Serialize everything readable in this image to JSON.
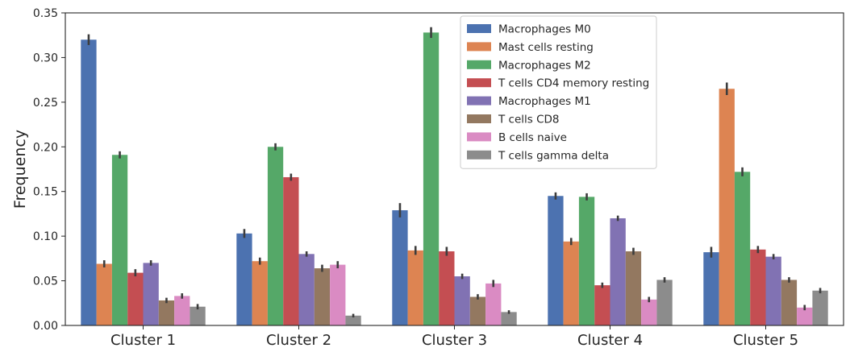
{
  "chart_data": {
    "type": "bar",
    "ylabel": "Frequency",
    "xlabel": "",
    "ylim": [
      0,
      0.35
    ],
    "yticks": [
      "0.00",
      "0.05",
      "0.10",
      "0.15",
      "0.20",
      "0.25",
      "0.30",
      "0.35"
    ],
    "categories": [
      "Cluster 1",
      "Cluster 2",
      "Cluster 3",
      "Cluster 4",
      "Cluster 5"
    ],
    "legend_position": "top-center",
    "grid": false,
    "series": [
      {
        "name": "Macrophages M0",
        "color": "#4c72b0",
        "values": [
          0.32,
          0.103,
          0.129,
          0.145,
          0.082
        ],
        "err": [
          0.006,
          0.005,
          0.008,
          0.004,
          0.006
        ]
      },
      {
        "name": "Mast cells resting",
        "color": "#dd8452",
        "values": [
          0.069,
          0.072,
          0.084,
          0.094,
          0.265
        ],
        "err": [
          0.004,
          0.004,
          0.005,
          0.004,
          0.007
        ]
      },
      {
        "name": "Macrophages M2",
        "color": "#55a868",
        "values": [
          0.191,
          0.2,
          0.328,
          0.144,
          0.172
        ],
        "err": [
          0.004,
          0.004,
          0.006,
          0.004,
          0.005
        ]
      },
      {
        "name": "T cells CD4 memory resting",
        "color": "#c44e52",
        "values": [
          0.059,
          0.166,
          0.083,
          0.045,
          0.085
        ],
        "err": [
          0.004,
          0.004,
          0.005,
          0.003,
          0.004
        ]
      },
      {
        "name": "Macrophages M1",
        "color": "#8172b3",
        "values": [
          0.07,
          0.08,
          0.055,
          0.12,
          0.077
        ],
        "err": [
          0.003,
          0.003,
          0.003,
          0.003,
          0.003
        ]
      },
      {
        "name": "T cells CD8",
        "color": "#937860",
        "values": [
          0.028,
          0.064,
          0.032,
          0.083,
          0.051
        ],
        "err": [
          0.003,
          0.004,
          0.003,
          0.004,
          0.003
        ]
      },
      {
        "name": "B cells naive",
        "color": "#da8bc3",
        "values": [
          0.033,
          0.068,
          0.047,
          0.029,
          0.02
        ],
        "err": [
          0.003,
          0.004,
          0.004,
          0.003,
          0.003
        ]
      },
      {
        "name": "T cells gamma delta",
        "color": "#8c8c8c",
        "values": [
          0.021,
          0.011,
          0.015,
          0.051,
          0.039
        ],
        "err": [
          0.003,
          0.002,
          0.002,
          0.003,
          0.003
        ]
      }
    ]
  }
}
